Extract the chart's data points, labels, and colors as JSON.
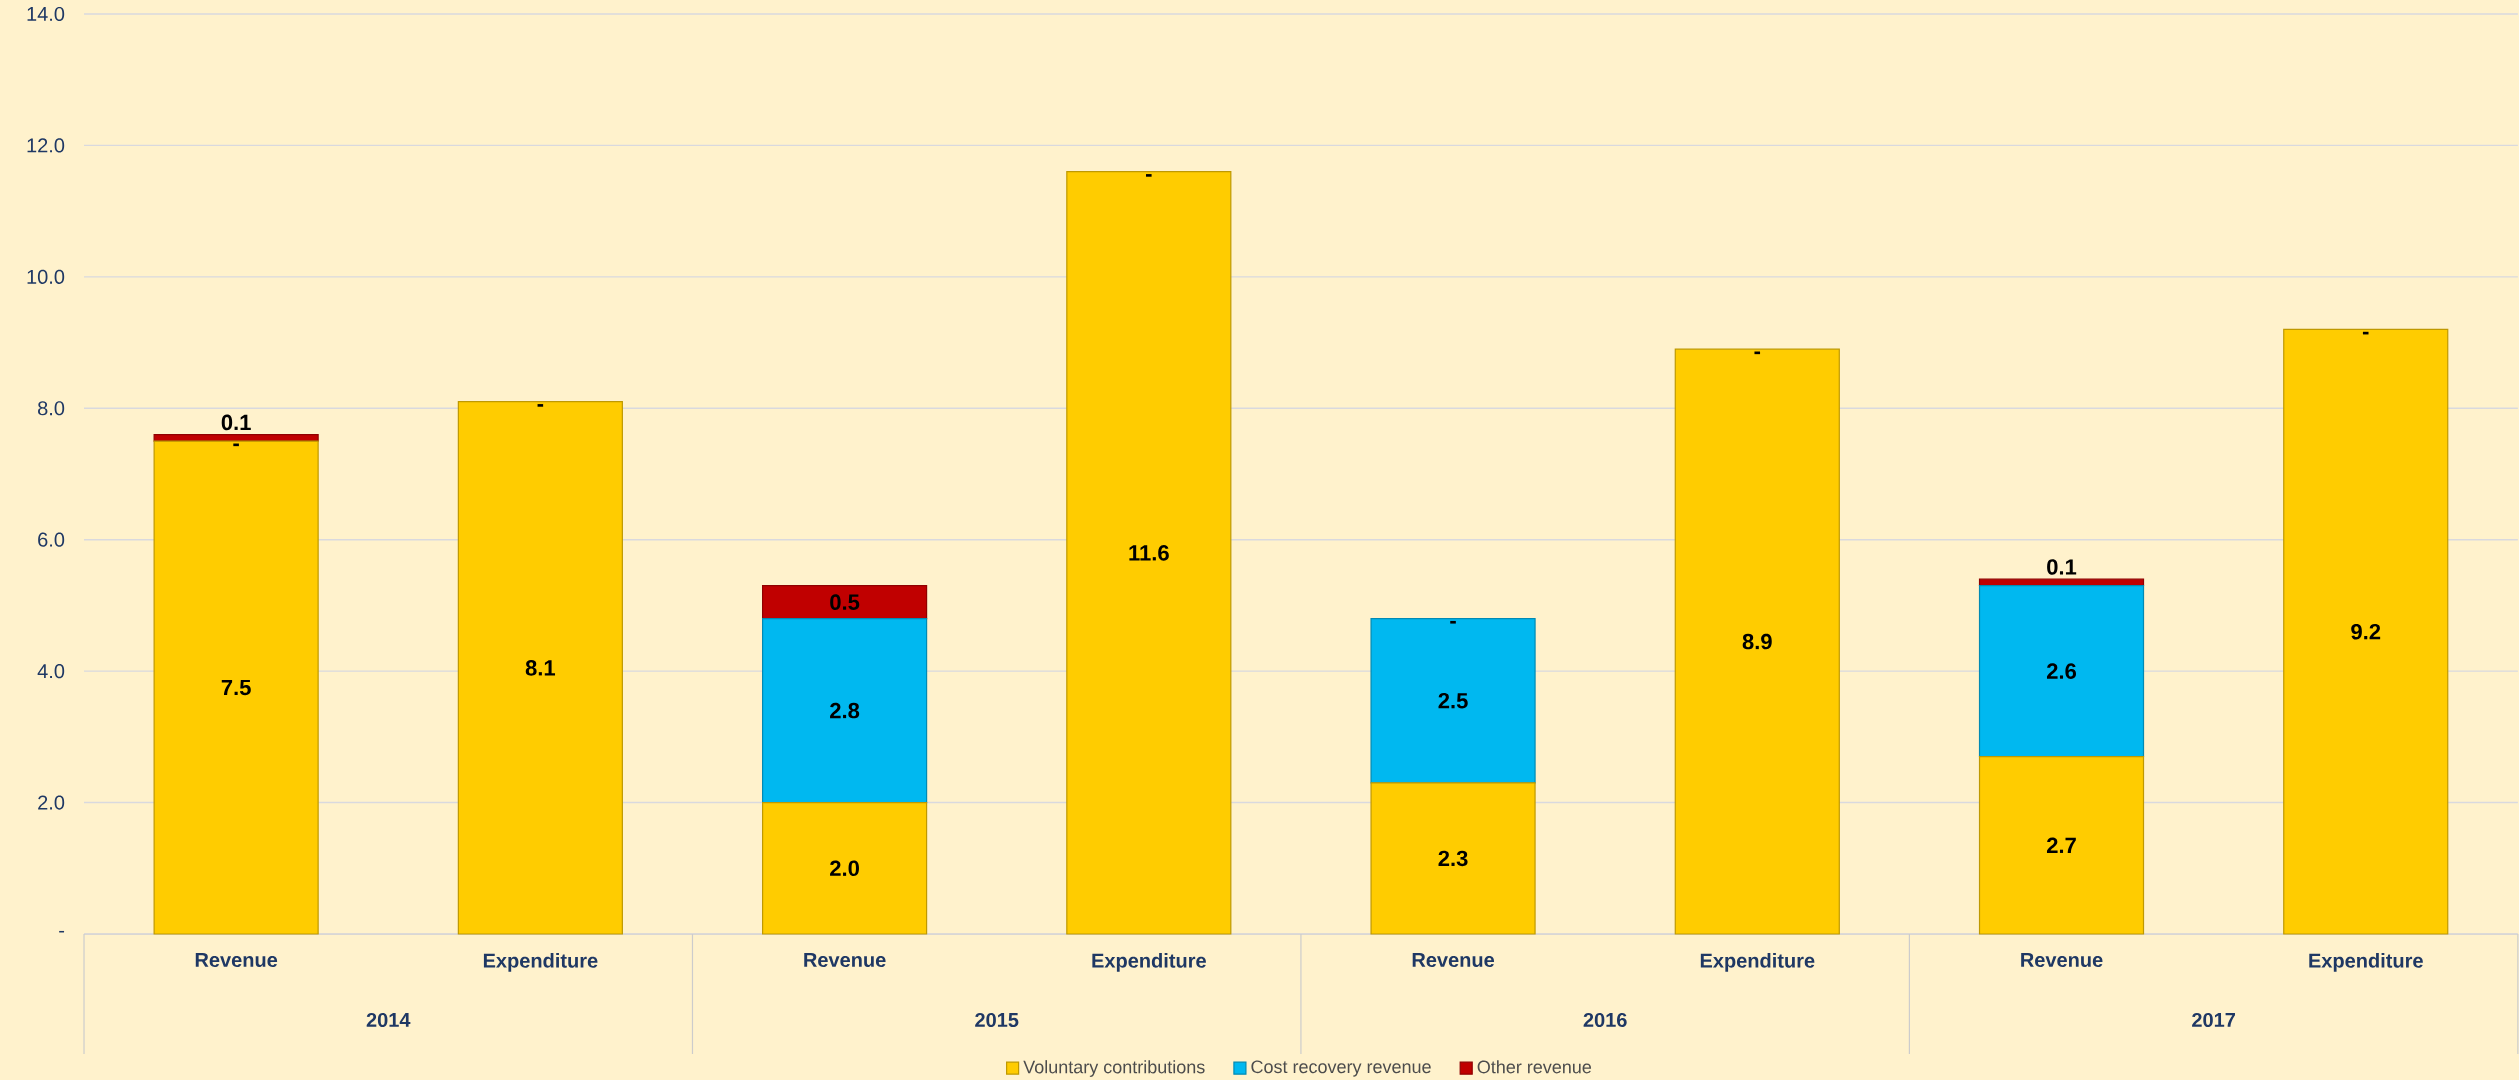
{
  "chart_data": {
    "type": "bar",
    "stacked": true,
    "categories": [
      "Revenue",
      "Expenditure",
      "Revenue",
      "Expenditure",
      "Revenue",
      "Expenditure",
      "Revenue",
      "Expenditure"
    ],
    "series": [
      {
        "name": "Voluntary contributions",
        "color": "#ffcc00",
        "values": [
          7.5,
          8.1,
          2.0,
          11.6,
          2.3,
          8.9,
          2.7,
          9.2
        ],
        "value_labels": [
          "7.5",
          "8.1",
          "2.0",
          "11.6",
          "2.3",
          "8.9",
          "2.7",
          "9.2"
        ]
      },
      {
        "name": "Cost recovery revenue",
        "color": "#00b8f0",
        "values": [
          0,
          0,
          2.8,
          0,
          2.5,
          0,
          2.6,
          0
        ],
        "value_labels": [
          "-",
          "-",
          "2.8",
          "-",
          "2.5",
          "-",
          "2.6",
          "-"
        ]
      },
      {
        "name": "Other revenue",
        "color": "#c00000",
        "values": [
          0.1,
          0,
          0.5,
          0,
          0,
          0,
          0.1,
          0
        ],
        "value_labels": [
          "0.1",
          null,
          "0.5",
          null,
          "-",
          null,
          "0.1",
          null
        ]
      }
    ],
    "ylim": [
      0,
      14
    ],
    "yticks": [
      {
        "value": 0,
        "label": "-"
      },
      {
        "value": 2,
        "label": "2.0"
      },
      {
        "value": 4,
        "label": "4.0"
      },
      {
        "value": 6,
        "label": "6.0"
      },
      {
        "value": 8,
        "label": "8.0"
      },
      {
        "value": 10,
        "label": "10.0"
      },
      {
        "value": 12,
        "label": "12.0"
      },
      {
        "value": 14,
        "label": "14.0"
      }
    ],
    "annotations": [
      "2014",
      "2015",
      "2016",
      "2017"
    ],
    "grid": "y",
    "legend": "bottom"
  }
}
